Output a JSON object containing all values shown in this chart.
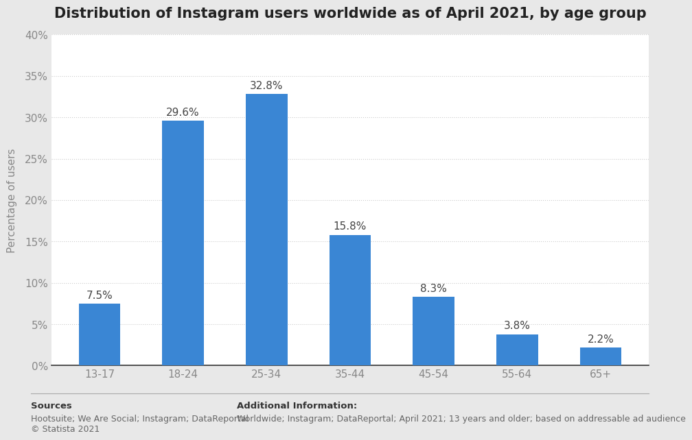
{
  "title": "Distribution of Instagram users worldwide as of April 2021, by age group",
  "categories": [
    "13-17",
    "18-24",
    "25-34",
    "35-44",
    "45-54",
    "55-64",
    "65+"
  ],
  "values": [
    7.5,
    29.6,
    32.8,
    15.8,
    8.3,
    3.8,
    2.2
  ],
  "bar_color": "#3a86d4",
  "ylabel": "Percentage of users",
  "ylim": [
    0,
    40
  ],
  "yticks": [
    0,
    5,
    10,
    15,
    20,
    25,
    30,
    35,
    40
  ],
  "ytick_labels": [
    "0%",
    "5%",
    "10%",
    "15%",
    "20%",
    "25%",
    "30%",
    "35%",
    "40%"
  ],
  "outer_bg_color": "#e8e8e8",
  "plot_bg_color": "#ffffff",
  "grid_color": "#cccccc",
  "bar_label_fontsize": 11,
  "title_fontsize": 15,
  "axis_label_fontsize": 11,
  "tick_fontsize": 11,
  "sources_label": "Sources",
  "sources_body": "Hootsuite; We Are Social; Instagram; DataReportal\n© Statista 2021",
  "additional_label": "Additional Information:",
  "additional_body": "Worldwide; Instagram; DataReportal; April 2021; 13 years and older; based on addressable ad audience"
}
